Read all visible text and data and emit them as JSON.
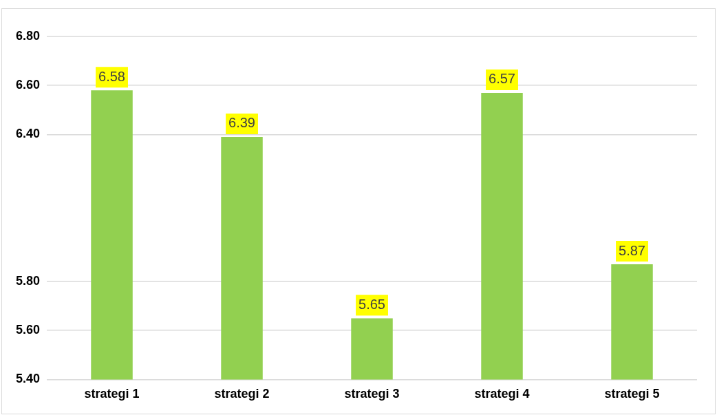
{
  "chart_data": {
    "type": "bar",
    "categories": [
      "strategi 1",
      "strategi 2",
      "strategi 3",
      "strategi 4",
      "strategi 5"
    ],
    "values": [
      6.58,
      6.39,
      5.65,
      6.57,
      5.87
    ],
    "color": "#92d050",
    "ylim": [
      5.4,
      6.8
    ],
    "yticks": [
      {
        "value": 5.4,
        "label": "5.40"
      },
      {
        "value": 5.6,
        "label": "5.60"
      },
      {
        "value": 5.8,
        "label": "5.80"
      },
      {
        "value": 6.4,
        "label": "6.40"
      },
      {
        "value": 6.6,
        "label": "6.60"
      },
      {
        "value": 6.8,
        "label": "6.80"
      }
    ],
    "grid": "y",
    "data_labels": true,
    "legend": false
  }
}
